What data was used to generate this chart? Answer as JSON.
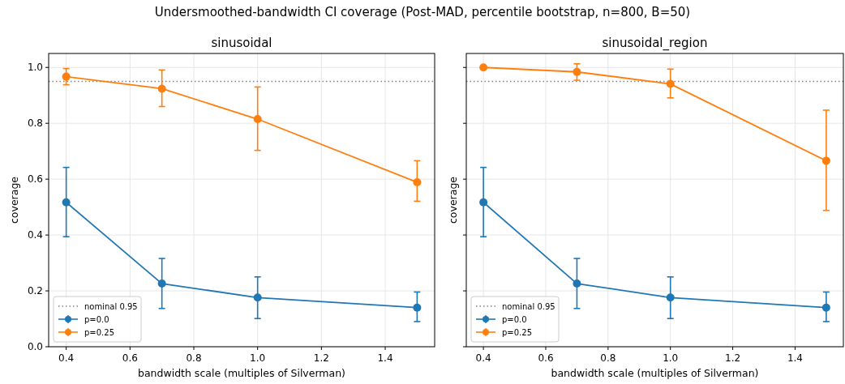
{
  "chart_data": [
    {
      "type": "line",
      "title": "sinusoidal",
      "annotations": [
        "Undersmoothed-bandwidth CI coverage (Post-MAD, percentile bootstrap, n=800, B=50)"
      ],
      "xlabel": "bandwidth scale (multiples of Silverman)",
      "ylabel": "coverage",
      "x": [
        0.4,
        0.7,
        1.0,
        1.5
      ],
      "series": [
        {
          "name": "p=0.0",
          "color": "#1f77b4",
          "values": [
            0.517,
            0.226,
            0.176,
            0.14
          ],
          "errors": [
            [
              0.394,
              0.642
            ],
            [
              0.137,
              0.316
            ],
            [
              0.101,
              0.25
            ],
            [
              0.09,
              0.196
            ]
          ]
        },
        {
          "name": "p=0.25",
          "color": "#ff7f0e",
          "values": [
            0.967,
            0.924,
            0.815,
            0.589
          ],
          "errors": [
            [
              0.938,
              0.996
            ],
            [
              0.86,
              0.991
            ],
            [
              0.703,
              0.93
            ],
            [
              0.521,
              0.666
            ]
          ]
        }
      ],
      "ref_lines": [
        {
          "axis": "y",
          "value": 0.95,
          "label": "nominal 0.95",
          "color": "#808080",
          "line_style": "dotted"
        }
      ],
      "xlim": [
        0.345,
        1.555
      ],
      "ylim": [
        0,
        1.05
      ],
      "xticks": [
        0.4,
        0.6,
        0.8,
        {
          "value": 1,
          "label": "1.0"
        },
        1.2,
        1.4
      ],
      "yticks": [
        {
          "value": 0,
          "label": "0.0"
        },
        0.2,
        0.4,
        0.6,
        0.8,
        {
          "value": 1,
          "label": "1.0"
        }
      ],
      "grid": true,
      "legend": "bottom left",
      "marker": "circle",
      "line_style": "solid"
    },
    {
      "type": "line",
      "title": "sinusoidal_region",
      "xlabel": "bandwidth scale (multiples of Silverman)",
      "ylabel": "coverage",
      "x": [
        0.4,
        0.7,
        1.0,
        1.5
      ],
      "series": [
        {
          "name": "p=0.0",
          "color": "#1f77b4",
          "values": [
            0.517,
            0.226,
            0.176,
            0.14
          ],
          "errors": [
            [
              0.394,
              0.642
            ],
            [
              0.137,
              0.316
            ],
            [
              0.101,
              0.25
            ],
            [
              0.09,
              0.196
            ]
          ]
        },
        {
          "name": "p=0.25",
          "color": "#ff7f0e",
          "values": [
            1.0,
            0.984,
            0.941,
            0.666
          ],
          "errors": [
            null,
            [
              0.954,
              1.013
            ],
            [
              0.891,
              0.994
            ],
            [
              0.488,
              0.847
            ]
          ]
        }
      ],
      "ref_lines": [
        {
          "axis": "y",
          "value": 0.95,
          "label": "nominal 0.95",
          "color": "#808080",
          "line_style": "dotted"
        }
      ],
      "xlim": [
        0.345,
        1.555
      ],
      "ylim": [
        0,
        1.05
      ],
      "xticks": [
        0.4,
        0.6,
        0.8,
        {
          "value": 1,
          "label": "1.0"
        },
        1.2,
        1.4
      ],
      "yticks": [
        0,
        0.2,
        0.4,
        0.6,
        0.8,
        1
      ],
      "grid": true,
      "legend": "bottom left",
      "marker": "circle",
      "line_style": "solid",
      "tick_labels": "x"
    }
  ]
}
